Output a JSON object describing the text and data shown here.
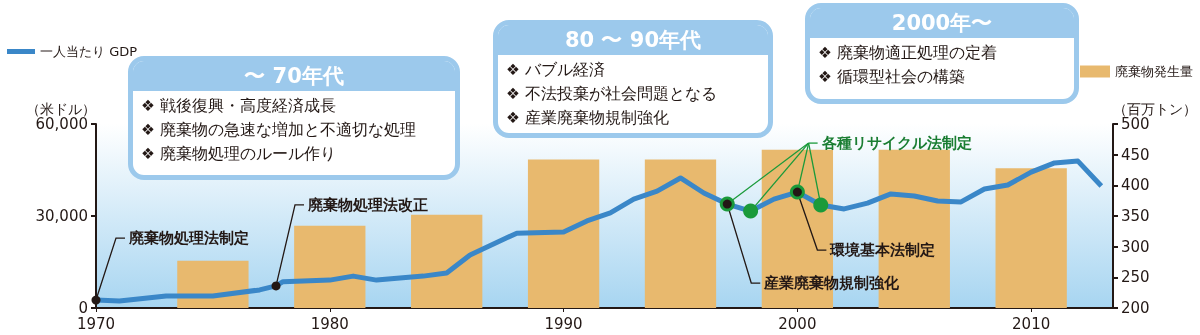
{
  "chart_data": {
    "type": "line",
    "ylabel": "（米ドル）",
    "y2label": "（百万トン）",
    "xlim": [
      1970,
      2013.5
    ],
    "xticks": [
      1970,
      1980,
      1990,
      2000,
      2010
    ],
    "ylim": [
      0,
      60000
    ],
    "yticks": [
      0,
      {
        "value": 30000,
        "label": "30,000"
      },
      {
        "value": 60000,
        "label": "60,000"
      }
    ],
    "y2lim": [
      200,
      500
    ],
    "y2ticks": [
      200,
      250,
      300,
      350,
      400,
      450,
      500
    ],
    "legend": "top",
    "grid": false,
    "series": [
      {
        "name": "一人当たり GDP",
        "color": "#3a87c8",
        "marker": "none",
        "x": [
          1970,
          1971,
          1973,
          1975,
          1977,
          1977.7,
          1978,
          1980,
          1981,
          1982,
          1983,
          1984,
          1985,
          1986,
          1988,
          1990,
          1991,
          1992,
          1993,
          1994,
          1995,
          1996,
          1997,
          1998,
          1999,
          2000,
          2001,
          2002,
          2003,
          2004,
          2005,
          2006,
          2007,
          2008,
          2009,
          2010,
          2011,
          2012,
          2013
        ],
        "values": [
          2600,
          2300,
          3900,
          3900,
          5900,
          7200,
          8600,
          9100,
          10400,
          9100,
          9800,
          10400,
          11400,
          17300,
          24400,
          24800,
          28400,
          31000,
          35500,
          38100,
          42400,
          37500,
          33900,
          31600,
          35500,
          37800,
          33600,
          32300,
          34200,
          37200,
          36500,
          34900,
          34600,
          38800,
          40100,
          44300,
          47300,
          47900,
          39800
        ]
      },
      {
        "name": "廃棄物発生量",
        "type": "bar",
        "axis": "y2",
        "color": "#e8b96e",
        "x": [
          1975,
          1980,
          1985,
          1990,
          1995,
          2000,
          2005,
          2010
        ],
        "values": [
          277,
          334,
          352,
          442,
          442,
          458,
          458,
          428
        ]
      },
      {
        "type": "scatter",
        "color": "#1a9a3a",
        "marker": "circle",
        "x": [
          1997,
          1998,
          2000,
          2001
        ],
        "values": [
          33900,
          31600,
          37800,
          33600
        ]
      },
      {
        "type": "scatter",
        "color": "#231815",
        "marker": "circle",
        "x": [
          1970,
          1977.7,
          1997,
          2000
        ],
        "values": [
          2600,
          7200,
          33900,
          37800
        ]
      }
    ],
    "annotations": [
      {
        "text": "廃棄物処理法制定",
        "x": 1970,
        "y": 2600
      },
      {
        "text": "廃棄物処理法改正",
        "x": 1977.7,
        "y": 7200
      },
      {
        "text": "産業廃棄物規制強化",
        "x": 1997,
        "y": 33900
      },
      {
        "text": "環境基本法制定",
        "x": 2000,
        "y": 37800
      },
      {
        "text": "各種リサイクル法制定",
        "x": 1998,
        "y": 31600
      },
      "〜 70年代",
      "❖ 戦後復興・高度経済成長",
      "❖ 廃棄物の急速な増加と不適切な処理",
      "❖ 廃棄物処理のルール作り",
      "80 〜 90年代",
      "❖ バブル経済",
      "❖ 不法投棄が社会問題となる",
      "❖ 産業廃棄物規制強化",
      "2000年〜",
      "❖ 廃棄物適正処理の定着",
      "❖ 循環型社会の構築"
    ]
  }
}
